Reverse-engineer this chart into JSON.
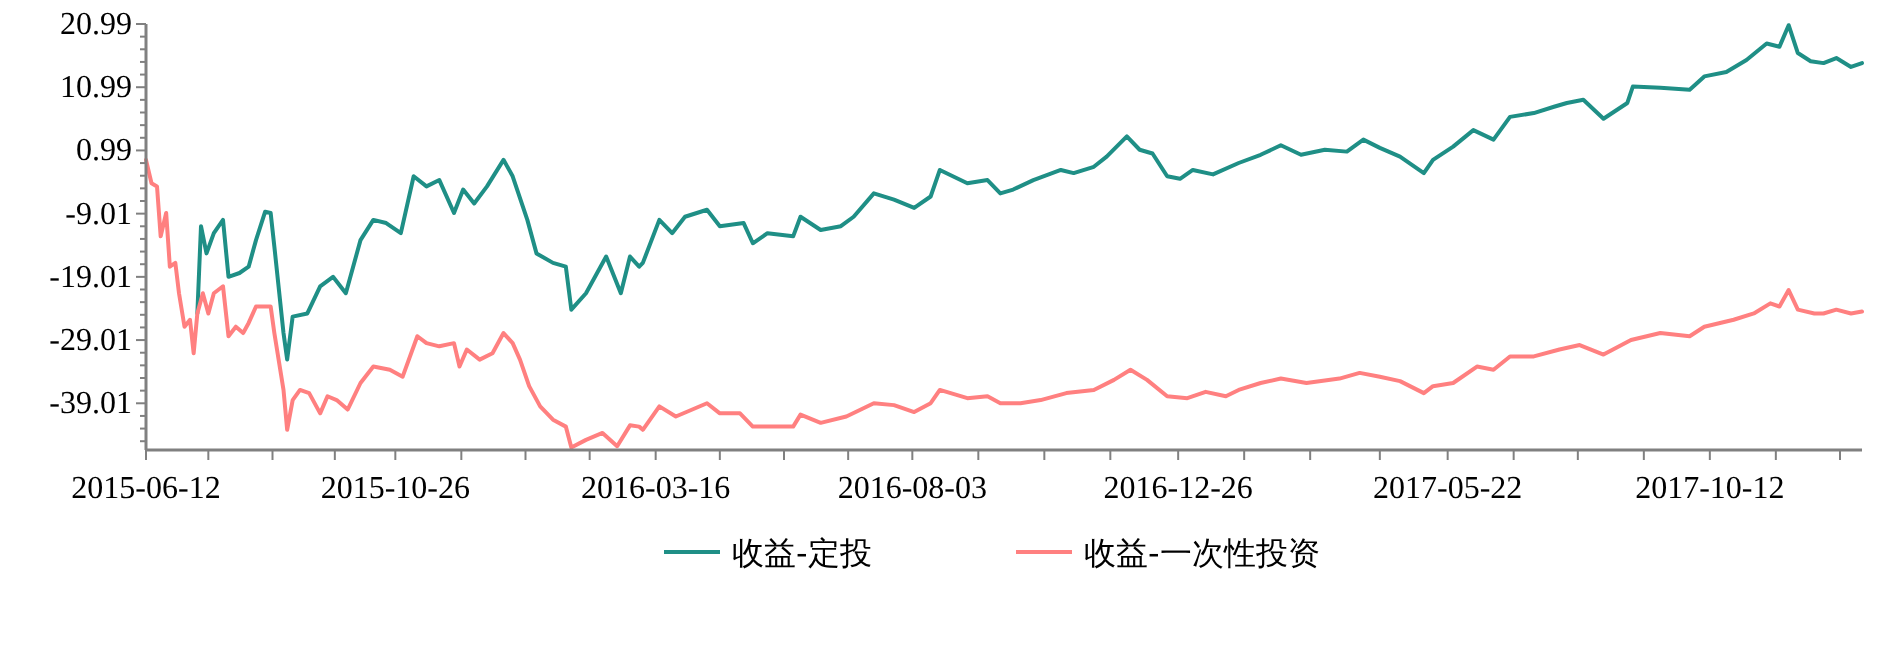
{
  "chart_data": {
    "type": "line",
    "legend": "bottom",
    "xlim": [
      "2015-06-12",
      "2018-01-03"
    ],
    "ylim": [
      -46.4,
      20.99
    ],
    "xticks": [
      {
        "value": "2015-06-12",
        "label": "2015-06-12"
      },
      {
        "value": "2015-07-16",
        "label": null
      },
      {
        "value": "2015-08-20",
        "label": null
      },
      {
        "value": "2015-09-23",
        "label": null
      },
      {
        "value": "2015-10-26",
        "label": "2015-10-26"
      },
      {
        "value": "2015-12-01",
        "label": null
      },
      {
        "value": "2016-01-05",
        "label": null
      },
      {
        "value": "2016-02-09",
        "label": null
      },
      {
        "value": "2016-03-16",
        "label": "2016-03-16"
      },
      {
        "value": "2016-04-20",
        "label": null
      },
      {
        "value": "2016-05-25",
        "label": null
      },
      {
        "value": "2016-06-29",
        "label": null
      },
      {
        "value": "2016-08-03",
        "label": "2016-08-03"
      },
      {
        "value": "2016-09-08",
        "label": null
      },
      {
        "value": "2016-10-14",
        "label": null
      },
      {
        "value": "2016-11-19",
        "label": null
      },
      {
        "value": "2016-12-26",
        "label": "2016-12-26"
      },
      {
        "value": "2017-01-31",
        "label": null
      },
      {
        "value": "2017-03-08",
        "label": null
      },
      {
        "value": "2017-04-15",
        "label": null
      },
      {
        "value": "2017-05-22",
        "label": "2017-05-22"
      },
      {
        "value": "2017-06-27",
        "label": null
      },
      {
        "value": "2017-08-01",
        "label": null
      },
      {
        "value": "2017-09-06",
        "label": null
      },
      {
        "value": "2017-10-12",
        "label": "2017-10-12"
      },
      {
        "value": "2017-11-17",
        "label": null
      },
      {
        "value": "2017-12-22",
        "label": null
      }
    ],
    "yticks": [
      {
        "value": 20.99,
        "label": "20.99"
      },
      {
        "value": 18.99,
        "label": null
      },
      {
        "value": 16.99,
        "label": null
      },
      {
        "value": 14.99,
        "label": null
      },
      {
        "value": 12.99,
        "label": null
      },
      {
        "value": 10.99,
        "label": "10.99"
      },
      {
        "value": 8.99,
        "label": null
      },
      {
        "value": 6.99,
        "label": null
      },
      {
        "value": 4.99,
        "label": null
      },
      {
        "value": 2.99,
        "label": null
      },
      {
        "value": 0.99,
        "label": "0.99"
      },
      {
        "value": -1.01,
        "label": null
      },
      {
        "value": -3.01,
        "label": null
      },
      {
        "value": -5.01,
        "label": null
      },
      {
        "value": -7.01,
        "label": null
      },
      {
        "value": -9.01,
        "label": "-9.01"
      },
      {
        "value": -11.01,
        "label": null
      },
      {
        "value": -13.01,
        "label": null
      },
      {
        "value": -15.01,
        "label": null
      },
      {
        "value": -17.01,
        "label": null
      },
      {
        "value": -19.01,
        "label": "-19.01"
      },
      {
        "value": -21.01,
        "label": null
      },
      {
        "value": -23.01,
        "label": null
      },
      {
        "value": -25.01,
        "label": null
      },
      {
        "value": -27.01,
        "label": null
      },
      {
        "value": -29.01,
        "label": "-29.01"
      },
      {
        "value": -31.01,
        "label": null
      },
      {
        "value": -33.01,
        "label": null
      },
      {
        "value": -35.01,
        "label": null
      },
      {
        "value": -37.01,
        "label": null
      },
      {
        "value": -39.01,
        "label": "-39.01"
      },
      {
        "value": -41.01,
        "label": null
      },
      {
        "value": -43.01,
        "label": null
      },
      {
        "value": -45.01,
        "label": null
      }
    ],
    "series": [
      {
        "name": "收益-定投",
        "color": "#1f8f86",
        "x": [
          "2015-07-10",
          "2015-07-12",
          "2015-07-15",
          "2015-07-19",
          "2015-07-24",
          "2015-07-27",
          "2015-08-02",
          "2015-08-07",
          "2015-08-11",
          "2015-08-16",
          "2015-08-19",
          "2015-08-21",
          "2015-08-26",
          "2015-08-28",
          "2015-08-31",
          "2015-09-08",
          "2015-09-15",
          "2015-09-22",
          "2015-09-29",
          "2015-10-07",
          "2015-10-14",
          "2015-10-21",
          "2015-10-29",
          "2015-11-05",
          "2015-11-12",
          "2015-11-19",
          "2015-11-27",
          "2015-12-02",
          "2015-12-08",
          "2015-12-15",
          "2015-12-24",
          "2015-12-29",
          "2016-01-06",
          "2016-01-11",
          "2016-01-20",
          "2016-01-27",
          "2016-01-30",
          "2016-02-07",
          "2016-02-18",
          "2016-02-26",
          "2016-03-02",
          "2016-03-07",
          "2016-03-09",
          "2016-03-18",
          "2016-03-25",
          "2016-04-01",
          "2016-04-13",
          "2016-04-20",
          "2016-05-03",
          "2016-05-08",
          "2016-05-16",
          "2016-05-30",
          "2016-06-03",
          "2016-06-14",
          "2016-06-25",
          "2016-07-02",
          "2016-07-13",
          "2016-07-24",
          "2016-08-04",
          "2016-08-13",
          "2016-08-18",
          "2016-09-02",
          "2016-09-13",
          "2016-09-20",
          "2016-09-27",
          "2016-10-08",
          "2016-10-23",
          "2016-10-30",
          "2016-11-10",
          "2016-11-17",
          "2016-11-28",
          "2016-12-05",
          "2016-12-12",
          "2016-12-20",
          "2016-12-27",
          "2017-01-03",
          "2017-01-14",
          "2017-01-28",
          "2017-02-09",
          "2017-02-20",
          "2017-03-03",
          "2017-03-16",
          "2017-03-28",
          "2017-04-06",
          "2017-04-15",
          "2017-04-26",
          "2017-05-09",
          "2017-05-14",
          "2017-05-25",
          "2017-06-05",
          "2017-06-16",
          "2017-06-25",
          "2017-07-08",
          "2017-07-19",
          "2017-07-26",
          "2017-08-04",
          "2017-08-15",
          "2017-08-28",
          "2017-08-31",
          "2017-09-15",
          "2017-10-01",
          "2017-10-09",
          "2017-10-21",
          "2017-11-01",
          "2017-11-12",
          "2017-11-19",
          "2017-11-24",
          "2017-11-29",
          "2017-12-06",
          "2017-12-13",
          "2017-12-20",
          "2017-12-28",
          "2018-01-03"
        ],
        "values": [
          -24.8,
          -11.0,
          -15.3,
          -12.1,
          -10.0,
          -19.0,
          -18.4,
          -17.4,
          -13.2,
          -8.7,
          -8.9,
          -14.2,
          -27.9,
          -32.1,
          -25.3,
          -24.8,
          -20.5,
          -19.0,
          -21.6,
          -13.2,
          -10.0,
          -10.5,
          -12.1,
          -3.1,
          -4.7,
          -3.7,
          -8.9,
          -5.2,
          -7.4,
          -4.7,
          -0.5,
          -3.1,
          -10.0,
          -15.3,
          -16.8,
          -17.4,
          -24.2,
          -21.6,
          -15.8,
          -21.6,
          -15.8,
          -17.4,
          -16.8,
          -10.0,
          -12.1,
          -9.5,
          -8.4,
          -11.0,
          -10.5,
          -13.7,
          -12.1,
          -12.6,
          -9.5,
          -11.6,
          -11.0,
          -9.5,
          -5.8,
          -6.8,
          -8.1,
          -6.3,
          -2.1,
          -4.2,
          -3.7,
          -5.8,
          -5.2,
          -3.7,
          -2.1,
          -2.6,
          -1.6,
          0.0,
          3.2,
          1.1,
          0.5,
          -3.1,
          -3.5,
          -2.1,
          -2.8,
          -1.0,
          0.3,
          1.8,
          0.3,
          1.1,
          0.8,
          2.7,
          1.4,
          0.0,
          -2.6,
          -0.5,
          1.6,
          4.2,
          2.7,
          6.3,
          6.9,
          7.9,
          8.5,
          9.0,
          6.0,
          8.5,
          11.1,
          10.9,
          10.6,
          12.7,
          13.4,
          15.3,
          17.9,
          17.4,
          20.8,
          16.4,
          15.1,
          14.8,
          15.6,
          14.2,
          14.8
        ]
      },
      {
        "name": "收益-一次性投资",
        "color": "#ff8080",
        "x": [
          "2015-06-12",
          "2015-06-15",
          "2015-06-18",
          "2015-06-20",
          "2015-06-23",
          "2015-06-25",
          "2015-06-28",
          "2015-06-30",
          "2015-07-03",
          "2015-07-06",
          "2015-07-08",
          "2015-07-10",
          "2015-07-13",
          "2015-07-16",
          "2015-07-19",
          "2015-07-24",
          "2015-07-27",
          "2015-07-31",
          "2015-08-04",
          "2015-08-07",
          "2015-08-11",
          "2015-08-19",
          "2015-08-21",
          "2015-08-26",
          "2015-08-28",
          "2015-08-31",
          "2015-09-04",
          "2015-09-09",
          "2015-09-15",
          "2015-09-19",
          "2015-09-24",
          "2015-09-30",
          "2015-10-07",
          "2015-10-14",
          "2015-10-23",
          "2015-10-30",
          "2015-11-07",
          "2015-11-12",
          "2015-11-19",
          "2015-11-27",
          "2015-11-30",
          "2015-12-04",
          "2015-12-11",
          "2015-12-18",
          "2015-12-24",
          "2015-12-29",
          "2016-01-02",
          "2016-01-07",
          "2016-01-13",
          "2016-01-20",
          "2016-01-27",
          "2016-01-30",
          "2016-02-07",
          "2016-02-16",
          "2016-02-24",
          "2016-03-02",
          "2016-03-07",
          "2016-03-09",
          "2016-03-18",
          "2016-03-27",
          "2016-04-13",
          "2016-04-20",
          "2016-05-01",
          "2016-05-08",
          "2016-05-19",
          "2016-05-30",
          "2016-06-03",
          "2016-06-14",
          "2016-06-28",
          "2016-07-13",
          "2016-07-24",
          "2016-08-04",
          "2016-08-13",
          "2016-08-18",
          "2016-09-02",
          "2016-09-13",
          "2016-09-20",
          "2016-10-01",
          "2016-10-12",
          "2016-10-26",
          "2016-11-10",
          "2016-11-21",
          "2016-11-30",
          "2016-12-09",
          "2016-12-20",
          "2016-12-31",
          "2017-01-10",
          "2017-01-21",
          "2017-01-28",
          "2017-02-09",
          "2017-02-20",
          "2017-03-06",
          "2017-03-24",
          "2017-04-04",
          "2017-04-15",
          "2017-04-26",
          "2017-05-09",
          "2017-05-14",
          "2017-05-25",
          "2017-06-07",
          "2017-06-16",
          "2017-06-25",
          "2017-07-08",
          "2017-07-22",
          "2017-08-02",
          "2017-08-15",
          "2017-08-30",
          "2017-09-15",
          "2017-10-01",
          "2017-10-09",
          "2017-10-25",
          "2017-11-05",
          "2017-11-14",
          "2017-11-19",
          "2017-11-24",
          "2017-11-29",
          "2017-12-08",
          "2017-12-13",
          "2017-12-20",
          "2017-12-28",
          "2018-01-03"
        ],
        "values": [
          -0.5,
          -4.2,
          -4.7,
          -12.6,
          -8.9,
          -17.4,
          -16.8,
          -21.6,
          -26.9,
          -25.8,
          -31.1,
          -24.8,
          -21.6,
          -24.8,
          -21.6,
          -20.5,
          -28.4,
          -26.9,
          -27.9,
          -26.3,
          -23.7,
          -23.7,
          -27.9,
          -36.9,
          -43.2,
          -38.5,
          -36.9,
          -37.4,
          -40.6,
          -37.9,
          -38.5,
          -40.0,
          -35.8,
          -33.2,
          -33.7,
          -34.8,
          -28.4,
          -29.5,
          -30.0,
          -29.5,
          -33.2,
          -30.5,
          -32.1,
          -31.1,
          -27.9,
          -29.5,
          -32.1,
          -36.3,
          -39.5,
          -41.6,
          -42.7,
          -46.0,
          -44.8,
          -43.7,
          -45.8,
          -42.5,
          -42.7,
          -43.2,
          -39.5,
          -41.1,
          -39.0,
          -40.6,
          -40.6,
          -42.7,
          -42.7,
          -42.7,
          -40.8,
          -42.1,
          -41.1,
          -39.0,
          -39.3,
          -40.4,
          -39.0,
          -36.9,
          -38.2,
          -37.9,
          -39.0,
          -39.0,
          -38.5,
          -37.4,
          -36.9,
          -35.3,
          -33.7,
          -35.3,
          -37.9,
          -38.2,
          -37.2,
          -37.9,
          -36.9,
          -35.8,
          -35.1,
          -35.8,
          -35.1,
          -34.2,
          -34.8,
          -35.5,
          -37.4,
          -36.3,
          -35.8,
          -33.2,
          -33.7,
          -31.6,
          -31.6,
          -30.5,
          -29.8,
          -31.3,
          -29.0,
          -27.9,
          -28.4,
          -26.9,
          -25.8,
          -24.8,
          -23.2,
          -23.7,
          -21.1,
          -24.2,
          -24.8,
          -24.8,
          -24.2,
          -24.8,
          -24.5
        ]
      }
    ]
  }
}
